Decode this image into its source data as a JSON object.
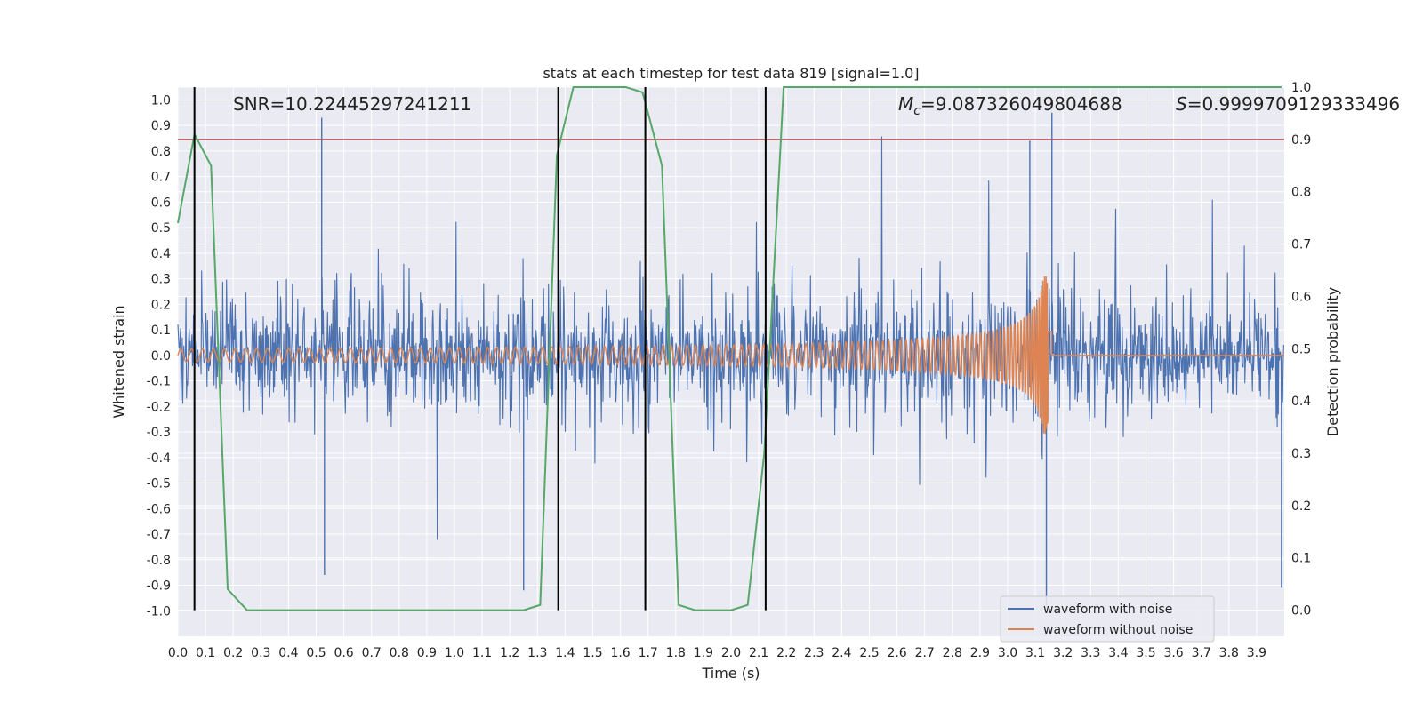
{
  "chart_data": {
    "type": "line",
    "title": "stats at each timestep for test data 819 [signal=1.0]",
    "xlabel": "Time (s)",
    "ylabel": "Whitened strain",
    "y2label": "Detection probability",
    "xlim": [
      0.0,
      4.0
    ],
    "ylim": [
      -1.1,
      1.05
    ],
    "y2lim": [
      -0.05,
      1.0
    ],
    "grid": true,
    "x_ticks": [
      "0.0",
      "0.1",
      "0.2",
      "0.3",
      "0.4",
      "0.5",
      "0.6",
      "0.7",
      "0.8",
      "0.9",
      "1.0",
      "1.1",
      "1.2",
      "1.3",
      "1.4",
      "1.5",
      "1.6",
      "1.7",
      "1.8",
      "1.9",
      "2.0",
      "2.1",
      "2.2",
      "2.3",
      "2.4",
      "2.5",
      "2.6",
      "2.7",
      "2.8",
      "2.9",
      "3.0",
      "3.1",
      "3.2",
      "3.3",
      "3.4",
      "3.5",
      "3.6",
      "3.7",
      "3.8",
      "3.9"
    ],
    "y_ticks": [
      "1.0",
      "0.9",
      "0.8",
      "0.7",
      "0.6",
      "0.5",
      "0.4",
      "0.3",
      "0.2",
      "0.1",
      "0.0",
      "-0.1",
      "-0.2",
      "-0.3",
      "-0.4",
      "-0.5",
      "-0.6",
      "-0.7",
      "-0.8",
      "-0.9",
      "-1.0"
    ],
    "y2_ticks": [
      "1.0",
      "0.9",
      "0.8",
      "0.7",
      "0.6",
      "0.5",
      "0.4",
      "0.3",
      "0.2",
      "0.1",
      "0.0"
    ],
    "annotations": {
      "snr": "SNR=10.22445297241211",
      "mc_symbol": "M",
      "mc_sub": "c",
      "mc_value": "=9.087326049804688",
      "s_symbol": "S",
      "s_value": "=0.9999709129333496"
    },
    "legend": {
      "placement": "bottom-right",
      "entries": [
        "waveform with noise",
        "waveform without noise"
      ]
    },
    "colors": {
      "noise": "#4c72b0",
      "clean": "#dd8452",
      "probability": "#55a868",
      "threshold": "#c44e52",
      "marker": "#000000",
      "background": "#eaeaf2",
      "grid": "#ffffff"
    },
    "series": [
      {
        "name": "waveform with noise",
        "axis": "left",
        "kind": "noise",
        "sample_rate": 512,
        "typical_amplitude": 0.3,
        "peak_events": [
          {
            "t": 0.52,
            "y": 0.93
          },
          {
            "t": 0.53,
            "y": -0.86
          },
          {
            "t": 1.25,
            "y": -0.92
          },
          {
            "t": 3.08,
            "y": 0.84
          },
          {
            "t": 3.16,
            "y": 0.95
          },
          {
            "t": 3.14,
            "y": -0.98
          },
          {
            "t": 3.99,
            "y": -0.91
          }
        ]
      },
      {
        "name": "waveform without noise",
        "axis": "left",
        "kind": "chirp",
        "start_frequency_hz": 25,
        "merger_time": 3.15,
        "start_amplitude": 0.025,
        "peak_amplitude": 0.31
      },
      {
        "name": "detection probability",
        "axis": "right",
        "x": [
          0.0,
          0.06,
          0.12,
          0.18,
          0.25,
          0.5,
          1.0,
          1.25,
          1.31,
          1.37,
          1.43,
          1.62,
          1.68,
          1.75,
          1.81,
          1.87,
          2.0,
          2.06,
          2.12,
          2.19,
          3.99
        ],
        "values": [
          0.74,
          0.91,
          0.85,
          0.04,
          0.0,
          0.0,
          0.0,
          0.0,
          0.01,
          0.87,
          1.0,
          1.0,
          0.99,
          0.85,
          0.01,
          0.0,
          0.0,
          0.01,
          0.3,
          1.0,
          1.0
        ]
      }
    ],
    "threshold_y2": 0.9,
    "marker_times": [
      0.06,
      1.375,
      1.69,
      2.125
    ]
  }
}
